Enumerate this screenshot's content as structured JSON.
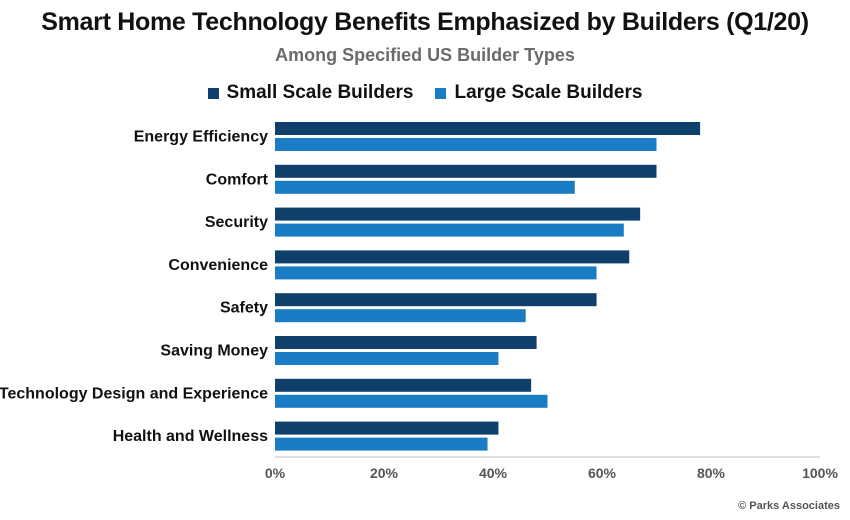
{
  "title": "Smart Home Technology Benefits Emphasized by Builders (Q1/20)",
  "subtitle": "Among Specified US Builder Types",
  "credit": "© Parks Associates",
  "legend": [
    {
      "label": "Small Scale Builders",
      "color": "#0f3f6b"
    },
    {
      "label": "Large Scale Builders",
      "color": "#1a7cc4"
    }
  ],
  "chart_data": {
    "type": "bar",
    "orientation": "horizontal",
    "categories": [
      "Energy Efficiency",
      "Comfort",
      "Security",
      "Convenience",
      "Safety",
      "Saving Money",
      "Technology Design and Experience",
      "Health and Wellness"
    ],
    "series": [
      {
        "name": "Small Scale Builders",
        "color": "#0f3f6b",
        "values": [
          78,
          70,
          67,
          65,
          59,
          48,
          47,
          41
        ]
      },
      {
        "name": "Large Scale Builders",
        "color": "#1a7cc4",
        "values": [
          70,
          55,
          64,
          59,
          46,
          41,
          50,
          39
        ]
      }
    ],
    "xlim": [
      0,
      100
    ],
    "xticks": [
      "0%",
      "20%",
      "40%",
      "60%",
      "80%",
      "100%"
    ],
    "grid": false,
    "legend_position": "top-center",
    "xlabel": "",
    "ylabel": ""
  }
}
